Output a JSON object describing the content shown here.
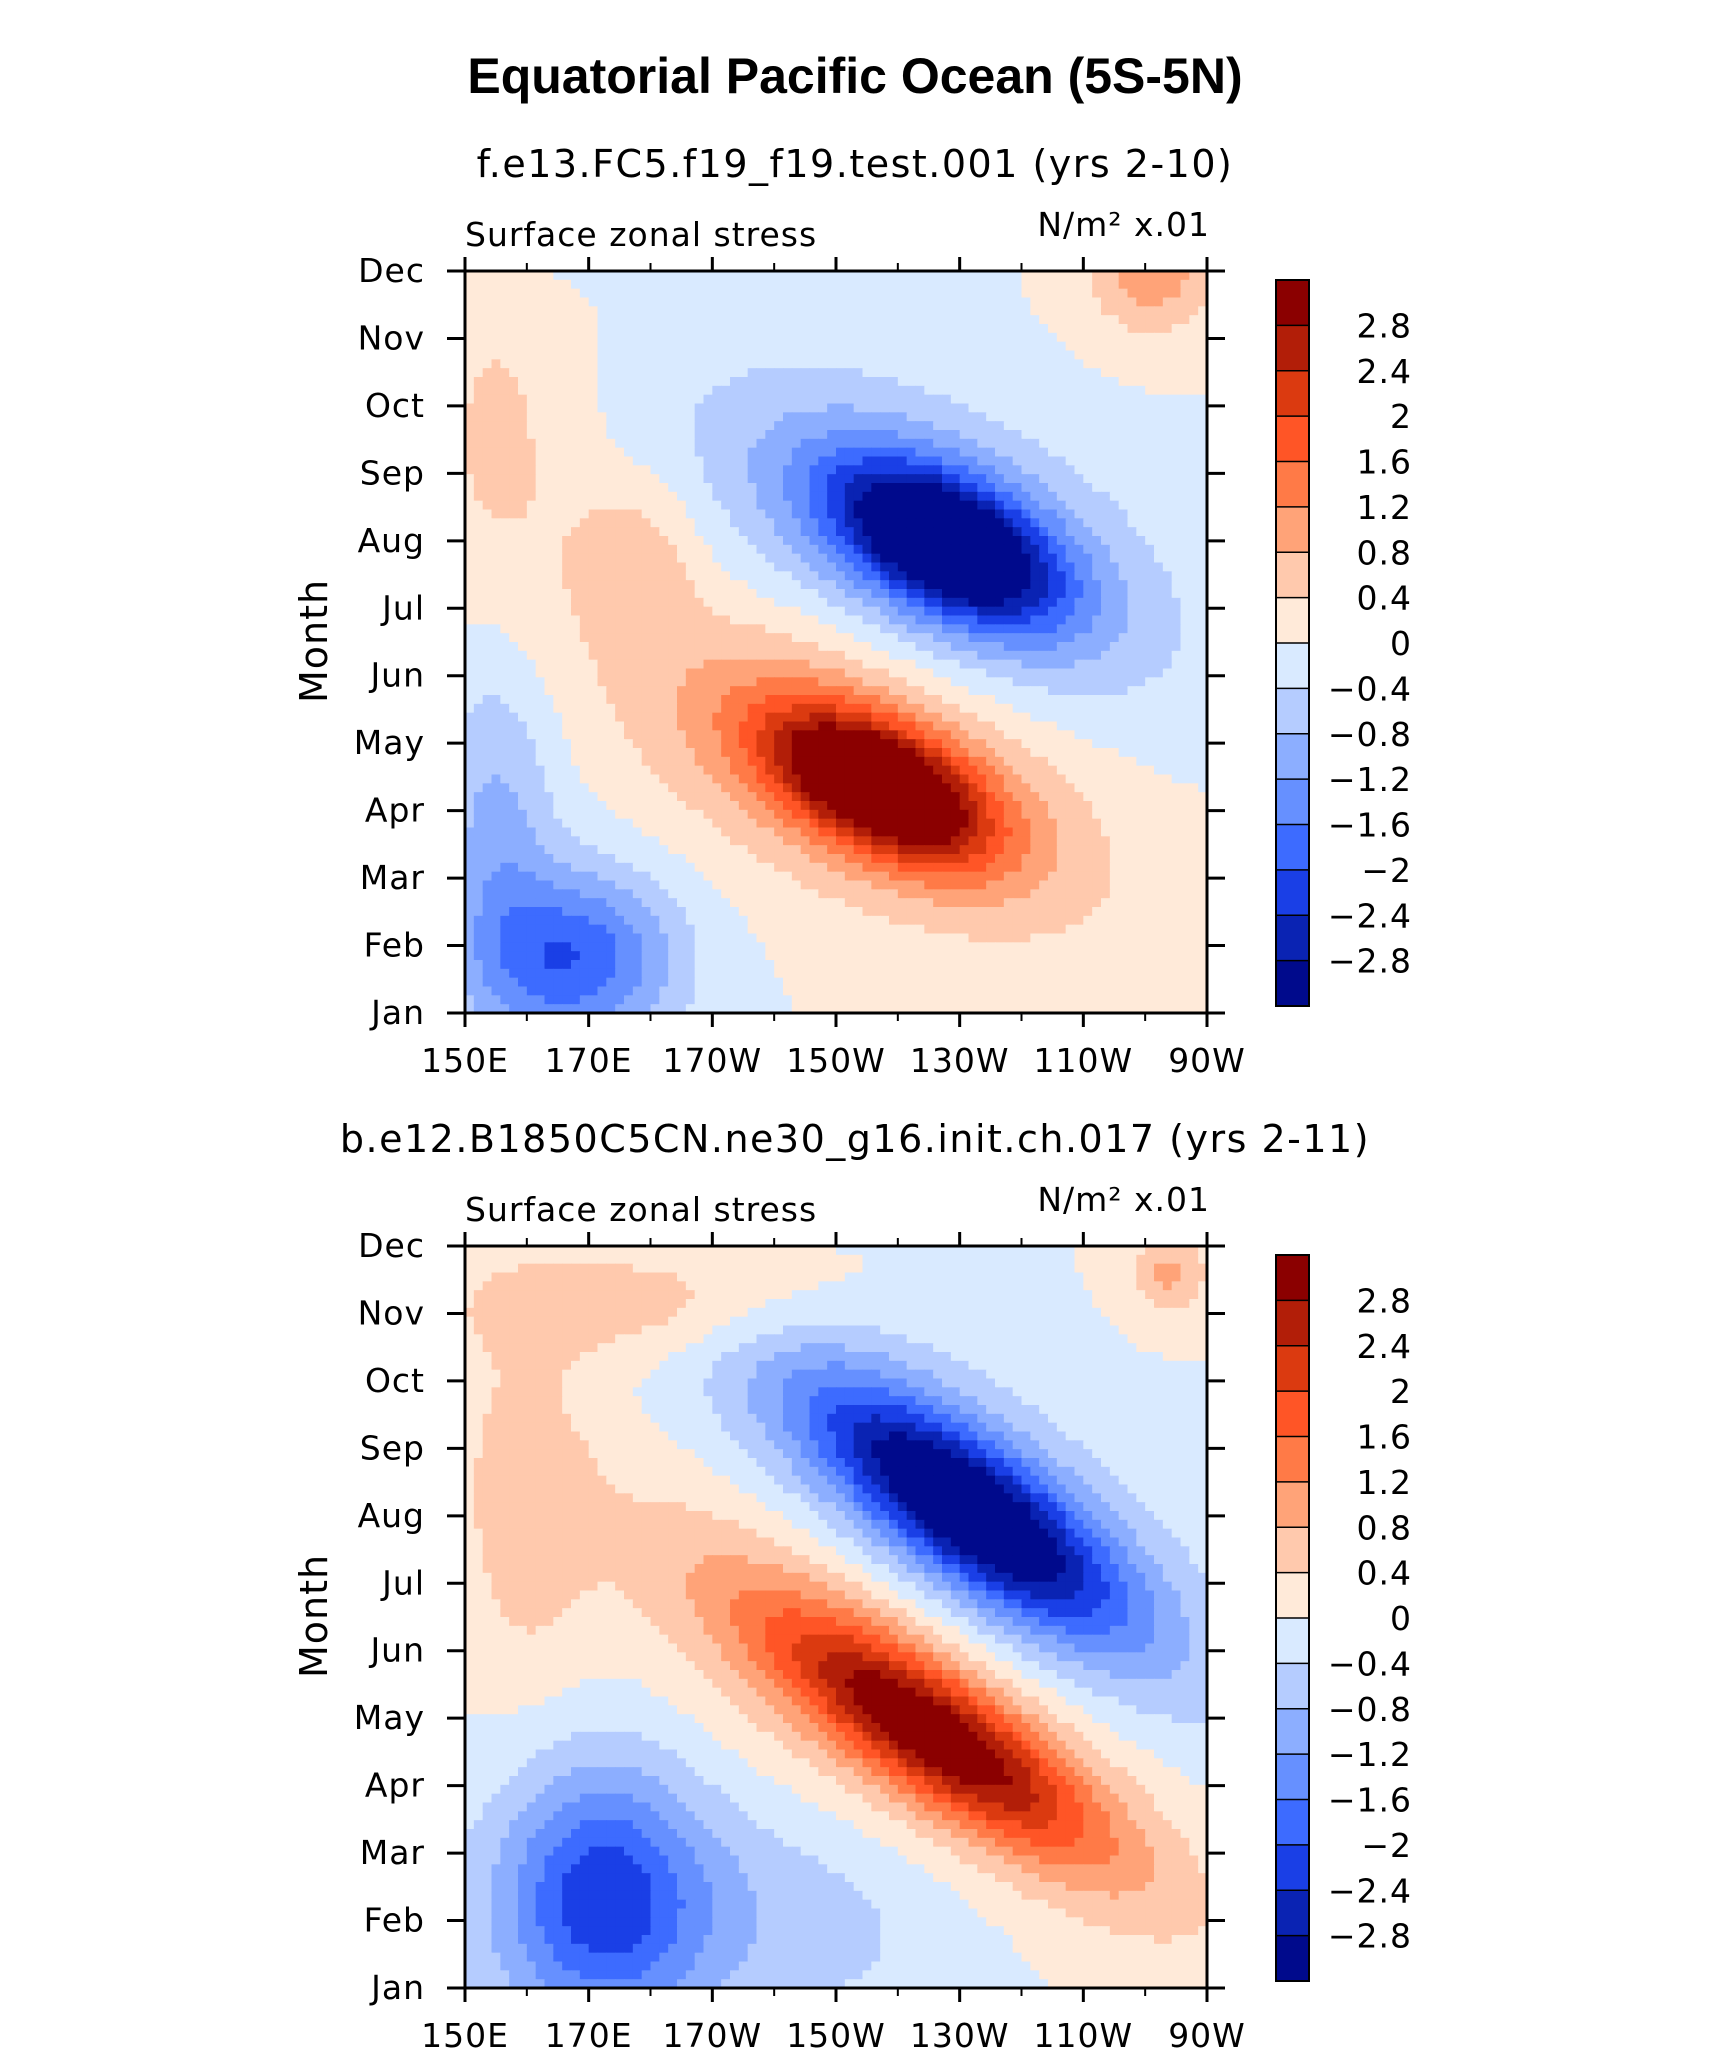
{
  "chart_data": {
    "type": "contour",
    "title": "Equatorial Pacific Ocean (5S-5N)",
    "panels": [
      {
        "subtitle": "f.e13.FC5.f19_f19.test.001 (yrs 2-10)",
        "left_string": "Surface zonal stress",
        "right_string": "N/m² x.01",
        "ylabel": "Month",
        "x_ticks": [
          "150E",
          "170E",
          "170W",
          "150W",
          "130W",
          "110W",
          "90W"
        ],
        "y_ticks": [
          "Jan",
          "Feb",
          "Mar",
          "Apr",
          "May",
          "Jun",
          "Jul",
          "Aug",
          "Sep",
          "Oct",
          "Nov",
          "Dec"
        ],
        "blobs": [
          {
            "cx": 170,
            "cy": 11.85,
            "rx": 14,
            "ry": 0.4,
            "amp": -1.6
          },
          {
            "cx": 180,
            "cy": 11.8,
            "rx": 36,
            "ry": 0.8,
            "amp": -0.6
          },
          {
            "cx": 261,
            "cy": 11.0,
            "rx": 10,
            "ry": 0.9,
            "amp": 1.1
          },
          {
            "cx": 156,
            "cy": 8.5,
            "rx": 14,
            "ry": 3.0,
            "amp": 0.5
          },
          {
            "cx": 178,
            "cy": 6.8,
            "rx": 10,
            "ry": 1.2,
            "amp": 0.6
          },
          {
            "cx": 228,
            "cy": 6.95,
            "rx": 18,
            "ry": 1.0,
            "amp": -3.2,
            "tilt": 30
          },
          {
            "cx": 225,
            "cy": 7.1,
            "rx": 36,
            "ry": 1.9,
            "amp": -1.3,
            "tilt": 30
          },
          {
            "cx": 217,
            "cy": 3.35,
            "rx": 17,
            "ry": 0.9,
            "amp": 3.3,
            "tilt": 30
          },
          {
            "cx": 214,
            "cy": 3.6,
            "rx": 36,
            "ry": 1.8,
            "amp": 1.4,
            "tilt": 30
          },
          {
            "cx": 168,
            "cy": 0.8,
            "rx": 16,
            "ry": 1.3,
            "amp": -1.9
          },
          {
            "cx": 155,
            "cy": 2.8,
            "rx": 10,
            "ry": 2.8,
            "amp": -0.9
          }
        ]
      },
      {
        "subtitle": "b.e12.B1850C5CN.ne30_g16.init.ch.017 (yrs 2-11)",
        "left_string": "Surface zonal stress",
        "right_string": "N/m² x.01",
        "ylabel": "Month",
        "x_ticks": [
          "150E",
          "170E",
          "170W",
          "150W",
          "130W",
          "110W",
          "90W"
        ],
        "y_ticks": [
          "Jan",
          "Feb",
          "Mar",
          "Apr",
          "May",
          "Jun",
          "Jul",
          "Aug",
          "Sep",
          "Oct",
          "Nov",
          "Dec"
        ],
        "blobs": [
          {
            "cx": 196,
            "cy": 11.85,
            "rx": 24,
            "ry": 0.4,
            "amp": -0.8
          },
          {
            "cx": 180,
            "cy": 10.2,
            "rx": 30,
            "ry": 0.9,
            "amp": 0.9
          },
          {
            "cx": 264,
            "cy": 10.6,
            "rx": 6,
            "ry": 0.6,
            "amp": 0.9
          },
          {
            "cx": 160,
            "cy": 7.0,
            "rx": 10,
            "ry": 2.5,
            "amp": 0.6
          },
          {
            "cx": 232,
            "cy": 7.05,
            "rx": 24,
            "ry": 1.1,
            "amp": -2.8,
            "tilt": 18
          },
          {
            "cx": 228,
            "cy": 7.3,
            "rx": 44,
            "ry": 2.0,
            "amp": -1.1,
            "tilt": 18
          },
          {
            "cx": 226,
            "cy": 3.75,
            "rx": 26,
            "ry": 1.0,
            "amp": 2.5,
            "tilt": 18
          },
          {
            "cx": 220,
            "cy": 4.2,
            "rx": 46,
            "ry": 1.9,
            "amp": 1.0,
            "tilt": 18
          },
          {
            "cx": 172,
            "cy": 1.4,
            "rx": 16,
            "ry": 2.0,
            "amp": -1.8
          },
          {
            "cx": 190,
            "cy": 1.0,
            "rx": 40,
            "ry": 1.8,
            "amp": -0.7
          }
        ]
      }
    ],
    "x_range_degE": [
      150,
      270
    ],
    "y_range_months": [
      0,
      11
    ],
    "colorbar": {
      "labels": [
        "2.8",
        "2.4",
        "2",
        "1.6",
        "1.2",
        "0.8",
        "0.4",
        "0",
        "−0.4",
        "−0.8",
        "−1.2",
        "−1.6",
        "−2",
        "−2.4",
        "−2.8"
      ],
      "levels": [
        2.8,
        2.4,
        2.0,
        1.6,
        1.2,
        0.8,
        0.4,
        0.0,
        -0.4,
        -0.8,
        -1.2,
        -1.6,
        -2.0,
        -2.4,
        -2.8
      ],
      "colors": [
        "#8B0000",
        "#B21E08",
        "#DB3A10",
        "#FF5526",
        "#FF7A47",
        "#FFA378",
        "#FFC9AD",
        "#FFEAD9",
        "#D9EAFF",
        "#B5CCFF",
        "#8CAEFF",
        "#6690FF",
        "#3D6BFF",
        "#1A3FE6",
        "#0A23B3",
        "#000A8C"
      ]
    }
  }
}
